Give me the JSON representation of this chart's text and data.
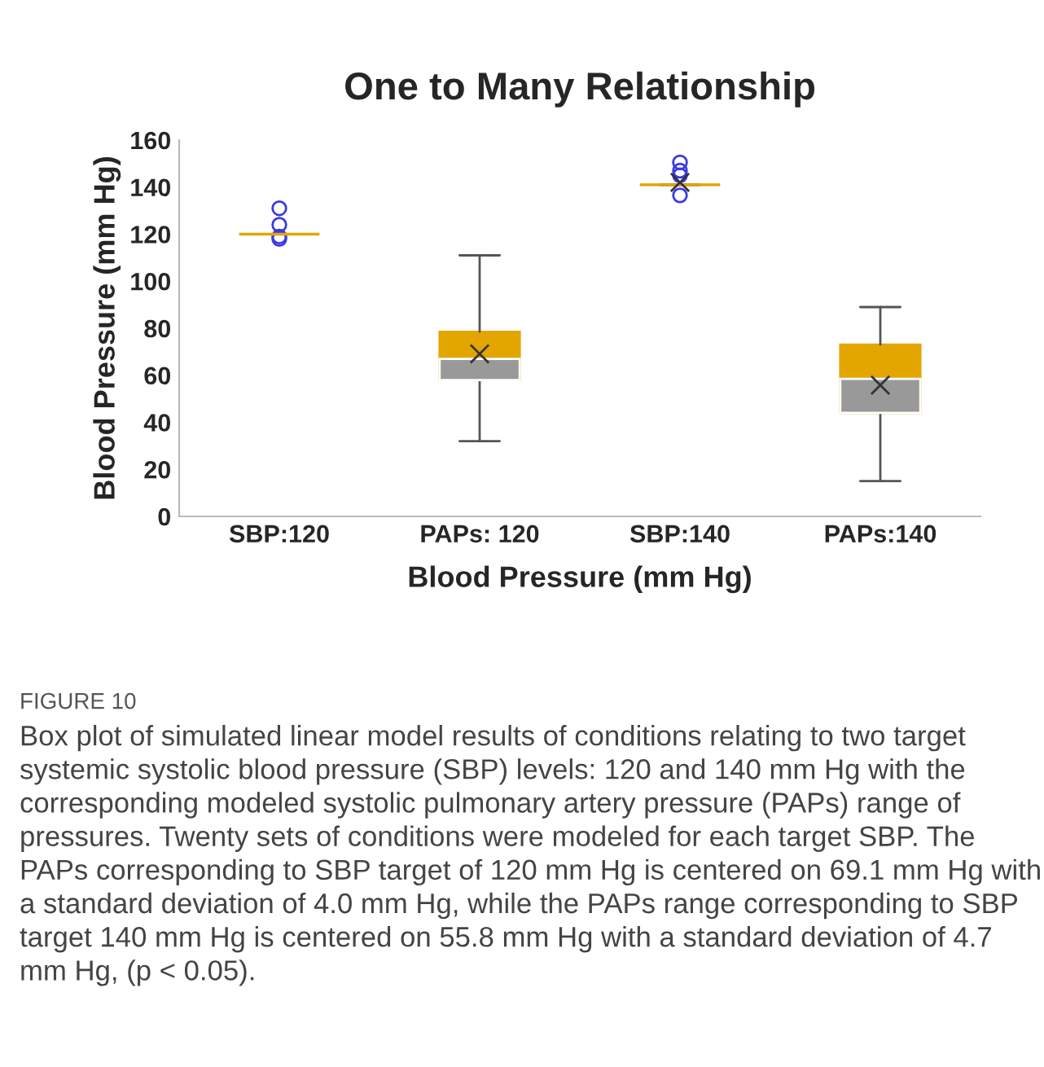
{
  "chart_data": {
    "type": "box",
    "title": "One to Many Relationship",
    "xlabel": "Blood Pressure (mm Hg)",
    "ylabel": "Blood Pressure (mm Hg)",
    "categories": [
      "SBP:120",
      "PAPs: 120",
      "SBP:140",
      "PAPs:140"
    ],
    "series": [
      {
        "color": "#999999",
        "colors": [
          "#e3a600",
          "#e3a600",
          "#e3a600",
          "#e3a600"
        ],
        "boxes": [
          {
            "low": 120,
            "q1": 120,
            "median": 120,
            "q3": 120,
            "high": 120,
            "outliers": [
              131,
              124,
              119,
              118
            ]
          },
          {
            "low": 32,
            "q1": 58,
            "median": 67,
            "q3": 78.5,
            "high": 111,
            "mean": 69.1
          },
          {
            "low": 141,
            "q1": 141,
            "median": 141,
            "q3": 141,
            "high": 141,
            "mean": 142,
            "outliers": [
              150.5,
              147,
              145,
              136.5
            ]
          },
          {
            "low": 15,
            "q1": 44,
            "median": 58.5,
            "q3": 73,
            "high": 89,
            "mean": 55.8
          }
        ]
      }
    ],
    "ylim": [
      0,
      160
    ],
    "yticks": [
      0,
      20,
      40,
      60,
      80,
      100,
      120,
      140,
      160
    ],
    "grid": false,
    "annotations": [
      "FIGURE 10",
      "Box plot of simulated linear model results of conditions relating to two target systemic systolic blood pressure (SBP) levels: 120 and 140 mm Hg with the corresponding modeled systolic pulmonary artery pressure (PAPs) range of pressures. Twenty sets of conditions were modeled for each target SBP. The PAPs corresponding to SBP target of 120 mm Hg is centered on 69.1 mm Hg with a standard deviation of 4.0 mm Hg, while the PAPs range corresponding to SBP target 140 mm Hg is centered on 55.8 mm Hg with a standard deviation of 4.7 mm Hg, (p < 0.05)."
    ]
  }
}
